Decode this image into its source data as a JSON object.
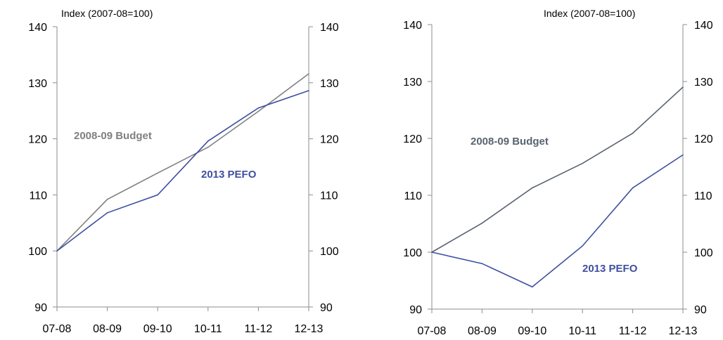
{
  "chart_data": [
    {
      "type": "line",
      "title": "",
      "unit_label": "Index (2007-08=100)",
      "categories": [
        "07-08",
        "08-09",
        "09-10",
        "10-11",
        "11-12",
        "12-13"
      ],
      "ylim": [
        90,
        140
      ],
      "yticks": [
        "140",
        "130",
        "120",
        "110",
        "100",
        "90"
      ],
      "series": [
        {
          "name": "2008-09 Budget",
          "color": "#808080",
          "values": [
            100,
            109.2,
            113.9,
            118.5,
            124.9,
            131.6
          ]
        },
        {
          "name": "2013 PEFO",
          "color": "#3f4fa0",
          "values": [
            100,
            106.8,
            110.0,
            119.6,
            125.5,
            128.6
          ]
        }
      ],
      "grid": false,
      "legend": "inline labels"
    },
    {
      "type": "line",
      "title": "",
      "unit_label": "Index (2007-08=100)",
      "categories": [
        "07-08",
        "08-09",
        "09-10",
        "10-11",
        "11-12",
        "12-13"
      ],
      "ylim": [
        90,
        140
      ],
      "yticks": [
        "140",
        "130",
        "120",
        "110",
        "100",
        "90"
      ],
      "series": [
        {
          "name": "2008-09 Budget",
          "color": "#5a6470",
          "values": [
            100,
            105.1,
            111.3,
            115.6,
            120.9,
            129.0
          ]
        },
        {
          "name": "2013 PEFO",
          "color": "#3f4fa0",
          "values": [
            100,
            98.0,
            93.9,
            101.1,
            111.3,
            117.1
          ]
        }
      ],
      "grid": false,
      "legend": "inline labels"
    }
  ]
}
